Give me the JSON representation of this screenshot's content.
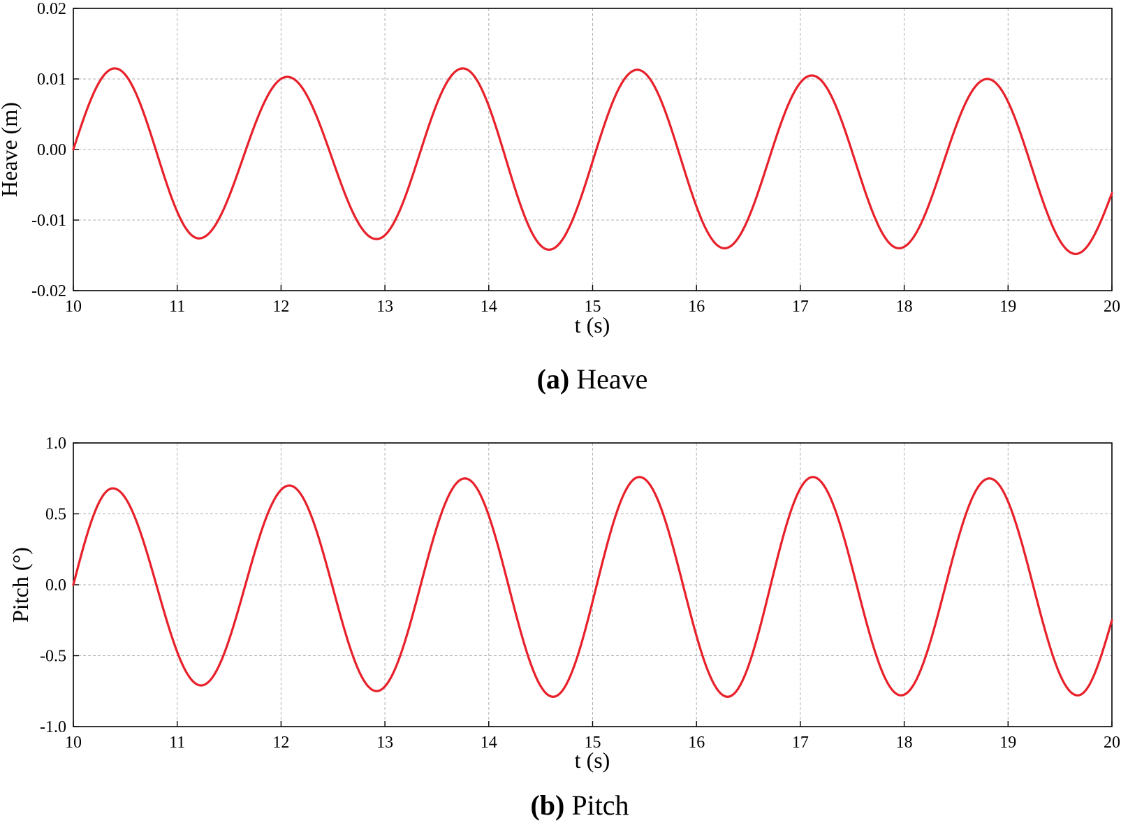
{
  "chart_data": [
    {
      "type": "line",
      "caption_letter": "(a)",
      "caption_text": "Heave",
      "xlabel": "t (s)",
      "ylabel": "Heave (m)",
      "xlim": [
        10,
        20
      ],
      "ylim": [
        -0.02,
        0.02
      ],
      "xticks": [
        "10",
        "11",
        "12",
        "13",
        "14",
        "15",
        "16",
        "17",
        "18",
        "19",
        "20"
      ],
      "yticks": [
        "-0.02",
        "-0.01",
        "0.00",
        "0.01",
        "0.02"
      ],
      "ytick_values": [
        -0.02,
        -0.01,
        0.0,
        0.01,
        0.02
      ],
      "grid": true,
      "color": "#e8202a",
      "x": [
        10.0,
        10.4,
        11.21,
        12.06,
        12.92,
        13.75,
        14.58,
        15.43,
        16.27,
        17.11,
        17.95,
        18.8,
        19.65,
        20.0
      ],
      "y": [
        0.0,
        0.0115,
        -0.0126,
        0.0103,
        -0.0127,
        0.0115,
        -0.0142,
        0.0113,
        -0.014,
        0.0105,
        -0.014,
        0.01,
        -0.0148,
        -0.0062
      ]
    },
    {
      "type": "line",
      "caption_letter": "(b)",
      "caption_text": "Pitch",
      "xlabel": "t (s)",
      "ylabel": "Pitch (°)",
      "xlim": [
        10,
        20
      ],
      "ylim": [
        -1.0,
        1.0
      ],
      "xticks": [
        "10",
        "11",
        "12",
        "13",
        "14",
        "15",
        "16",
        "17",
        "18",
        "19",
        "20"
      ],
      "yticks": [
        "-1.0",
        "-0.5",
        "0.0",
        "0.5",
        "1.0"
      ],
      "ytick_values": [
        -1.0,
        -0.5,
        0.0,
        0.5,
        1.0
      ],
      "grid": true,
      "color": "#e8202a",
      "x": [
        10.0,
        10.38,
        11.23,
        12.08,
        12.92,
        13.77,
        14.62,
        15.45,
        16.3,
        17.12,
        17.97,
        18.82,
        19.67,
        20.0
      ],
      "y": [
        0.0,
        0.68,
        -0.71,
        0.7,
        -0.75,
        0.75,
        -0.79,
        0.76,
        -0.79,
        0.76,
        -0.78,
        0.75,
        -0.78,
        -0.25
      ]
    }
  ]
}
